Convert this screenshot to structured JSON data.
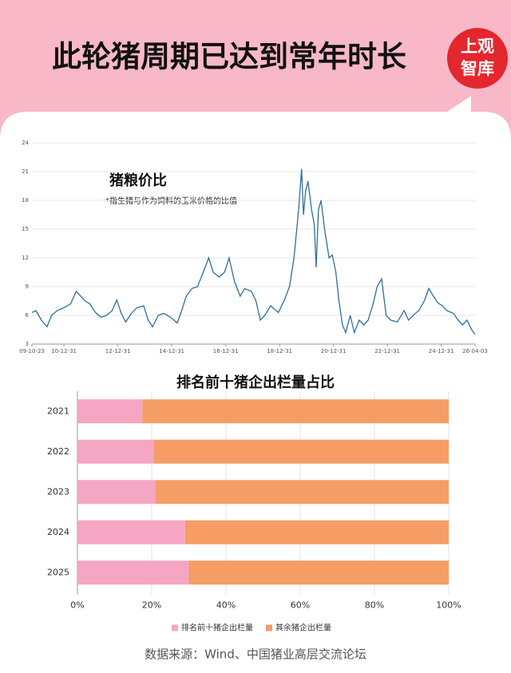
{
  "header": {
    "title": "此轮猪周期已达到常年时长",
    "logo": [
      "上观",
      "智库"
    ]
  },
  "chart_data": [
    {
      "type": "line",
      "title": "猪粮价比",
      "subtitle": "*指生猪与作为饲料的玉米价格的比值",
      "color": "#2f6f9f",
      "x": [
        "2009-10-23",
        "2009-12-15",
        "2010-03-01",
        "2010-05-15",
        "2010-07-15",
        "2010-10-01",
        "2011-01-01",
        "2011-04-01",
        "2011-06-15",
        "2011-08-15",
        "2011-10-15",
        "2011-12-15",
        "2012-03-01",
        "2012-05-15",
        "2012-08-01",
        "2012-10-15",
        "2012-12-15",
        "2013-02-15",
        "2013-04-15",
        "2013-07-01",
        "2013-09-15",
        "2013-12-15",
        "2014-02-15",
        "2014-04-15",
        "2014-07-01",
        "2014-09-15",
        "2014-12-15",
        "2015-03-15",
        "2015-05-15",
        "2015-07-15",
        "2015-10-01",
        "2015-12-15",
        "2016-03-01",
        "2016-05-15",
        "2016-07-15",
        "2016-10-01",
        "2016-12-15",
        "2017-02-15",
        "2017-05-01",
        "2017-07-15",
        "2017-09-15",
        "2017-12-15",
        "2018-02-15",
        "2018-04-15",
        "2018-06-15",
        "2018-09-01",
        "2018-12-15",
        "2019-03-01",
        "2019-05-15",
        "2019-07-15",
        "2019-09-15",
        "2019-10-25",
        "2019-11-20",
        "2019-12-20",
        "2020-01-20",
        "2020-03-10",
        "2020-04-15",
        "2020-05-10",
        "2020-06-10",
        "2020-07-15",
        "2020-09-01",
        "2020-11-01",
        "2020-12-15",
        "2021-02-01",
        "2021-03-15",
        "2021-05-01",
        "2021-06-15",
        "2021-08-15",
        "2021-10-10",
        "2021-12-15",
        "2022-02-15",
        "2022-04-15",
        "2022-06-15",
        "2022-08-15",
        "2022-10-15",
        "2022-12-15",
        "2023-02-15",
        "2023-05-15",
        "2023-08-15",
        "2023-10-15",
        "2023-12-15",
        "2024-03-01",
        "2024-05-15",
        "2024-07-15",
        "2024-09-15",
        "2024-11-15",
        "2025-01-15",
        "2025-03-15",
        "2025-06-15",
        "2025-08-15",
        "2025-10-15",
        "2025-12-15",
        "2026-02-15",
        "2026-04-03"
      ],
      "values": [
        6.3,
        6.5,
        5.5,
        4.8,
        6.0,
        6.5,
        6.8,
        7.2,
        8.5,
        8.0,
        7.5,
        7.2,
        6.3,
        5.8,
        6.0,
        6.5,
        7.6,
        6.2,
        5.3,
        6.2,
        6.8,
        7.0,
        5.5,
        4.8,
        6.0,
        6.2,
        5.8,
        5.2,
        6.5,
        8.0,
        8.8,
        9.0,
        10.5,
        12.0,
        10.5,
        10.0,
        10.5,
        12.0,
        9.5,
        8.0,
        8.8,
        8.5,
        7.5,
        5.5,
        6.0,
        7.0,
        6.3,
        7.5,
        9.0,
        12.0,
        17.0,
        21.3,
        16.5,
        19.0,
        20.0,
        17.0,
        15.5,
        11.0,
        17.0,
        18.0,
        15.0,
        12.0,
        12.3,
        10.5,
        7.5,
        5.0,
        4.2,
        6.0,
        4.2,
        5.5,
        5.0,
        5.5,
        7.0,
        9.0,
        9.8,
        6.0,
        5.5,
        5.3,
        6.5,
        5.5,
        6.0,
        6.5,
        7.5,
        8.8,
        8.0,
        7.3,
        7.0,
        6.5,
        6.2,
        5.5,
        5.0,
        5.5,
        4.5,
        4.0
      ],
      "xlim": [
        "2009-10-23",
        "2026-04-03"
      ],
      "xticks": [
        {
          "value": "2009-10-23",
          "label": "09-10-23"
        },
        {
          "value": "2010-12-31",
          "label": "10-12-31"
        },
        {
          "value": "2012-12-31",
          "label": "12-12-31"
        },
        {
          "value": "2014-12-31",
          "label": "14-12-31"
        },
        {
          "value": "2016-12-31",
          "label": "16-12-31"
        },
        {
          "value": "2018-12-31",
          "label": "18-12-31"
        },
        {
          "value": "2020-12-31",
          "label": "20-12-31"
        },
        {
          "value": "2022-12-31",
          "label": "22-12-31"
        },
        {
          "value": "2024-12-31",
          "label": "24-12-31"
        },
        {
          "value": "2026-04-03",
          "label": "26-04-03"
        }
      ],
      "ylim": [
        3,
        24
      ],
      "yticks": [
        3,
        6,
        9,
        12,
        15,
        18,
        21,
        24
      ],
      "grid": true
    },
    {
      "type": "barh",
      "title": "排名前十猪企出栏量占比",
      "categories": [
        "2021",
        "2022",
        "2023",
        "2024",
        "2025"
      ],
      "series": [
        {
          "name": "排名前十猪企出栏量",
          "color": "#f4a6c2",
          "values": [
            17.5,
            20.5,
            21,
            29,
            30
          ]
        },
        {
          "name": "其余猪企出栏量",
          "color": "#f59d65",
          "values": [
            82.5,
            79.5,
            79,
            71,
            70
          ]
        }
      ],
      "xlim": [
        0,
        100
      ],
      "xticks": [
        {
          "value": 0,
          "label": "0%"
        },
        {
          "value": 20,
          "label": "20%"
        },
        {
          "value": 40,
          "label": "40%"
        },
        {
          "value": 60,
          "label": "60%"
        },
        {
          "value": 80,
          "label": "80%"
        },
        {
          "value": 100,
          "label": "100%"
        }
      ],
      "grid": true,
      "legend": "bottom"
    }
  ],
  "footer": {
    "source": "数据来源：Wind、中国猪业高层交流论坛"
  }
}
